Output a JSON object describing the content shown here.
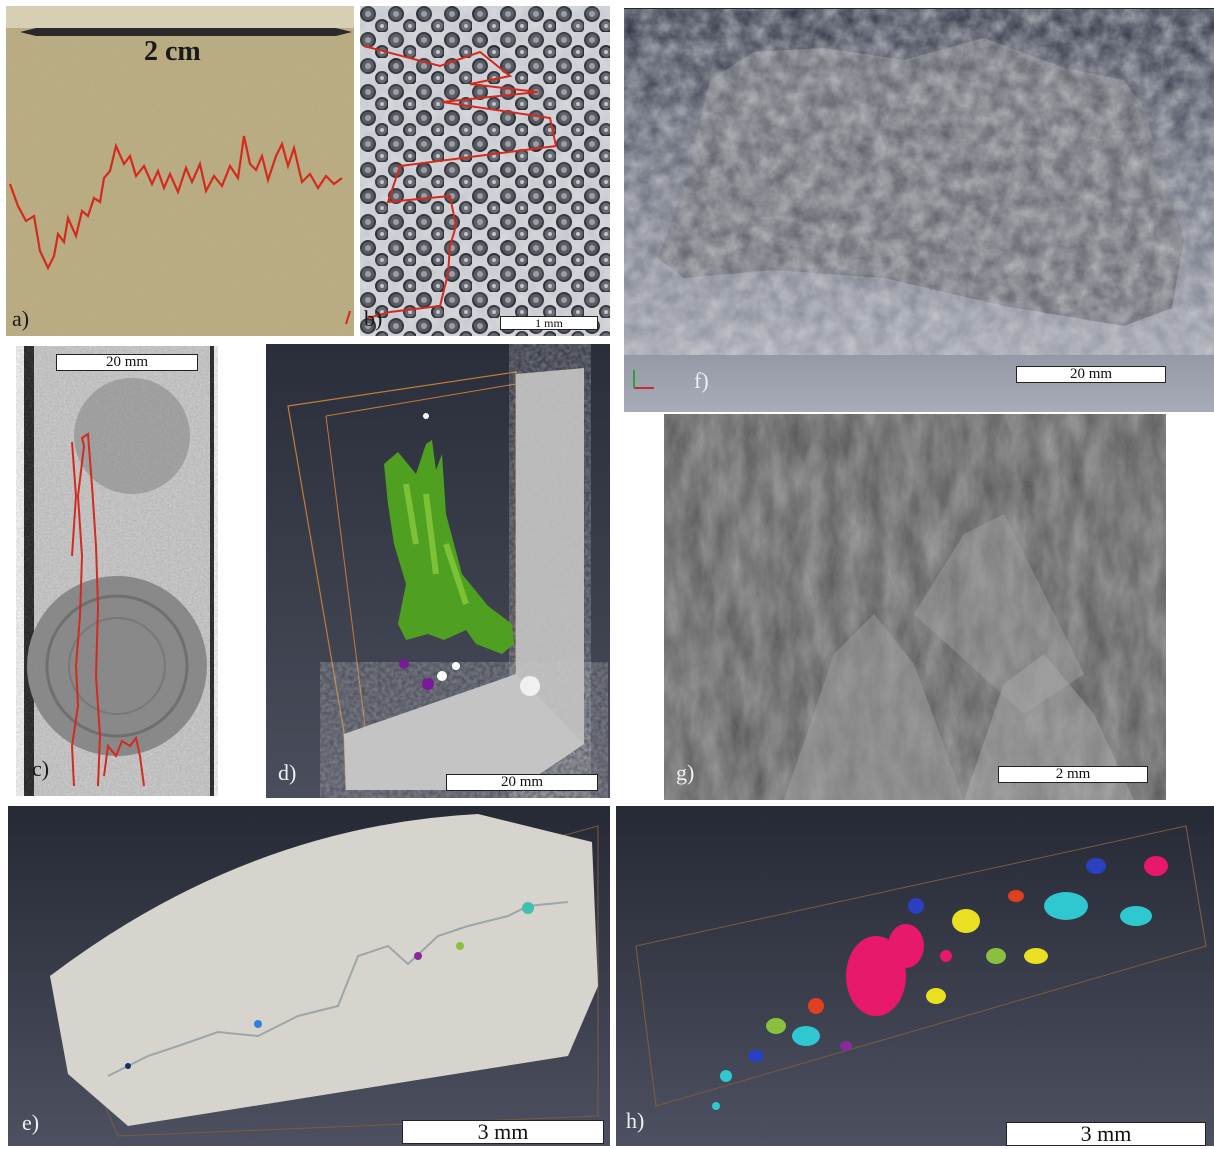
{
  "panels": {
    "a": {
      "label": "a)",
      "scale": "2 cm"
    },
    "b": {
      "label": "b)",
      "scale": "1 mm"
    },
    "c": {
      "label": "c)",
      "scale": "20 mm"
    },
    "d": {
      "label": "d)",
      "scale": "20 mm"
    },
    "e": {
      "label": "e)",
      "scale": "3 mm"
    },
    "f": {
      "label": "f)",
      "scale": "20 mm"
    },
    "g": {
      "label": "g)",
      "scale": "2 mm"
    },
    "h": {
      "label": "h)",
      "scale": "3 mm"
    }
  },
  "colors": {
    "trace_red": "#d42a1e",
    "sandstone": "#c3b487",
    "render_background": "#3c4150",
    "segment_green": "#4fa020"
  }
}
